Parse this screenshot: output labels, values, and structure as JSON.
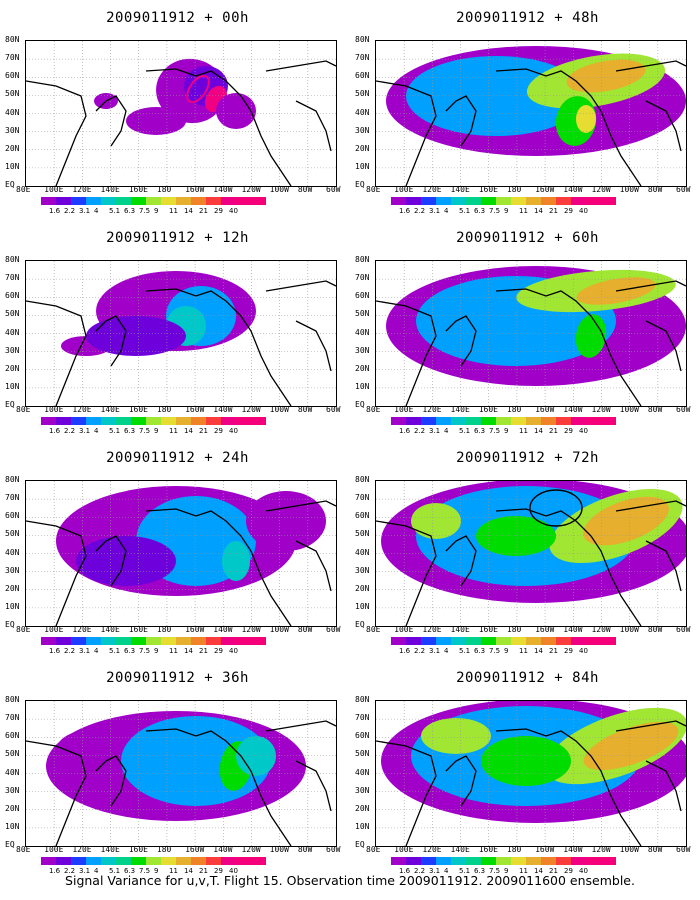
{
  "panels": [
    {
      "title": "2009011912 + 00h",
      "lead": "00h"
    },
    {
      "title": "2009011912 + 48h",
      "lead": "48h"
    },
    {
      "title": "2009011912 + 12h",
      "lead": "12h"
    },
    {
      "title": "2009011912 + 60h",
      "lead": "60h"
    },
    {
      "title": "2009011912 + 24h",
      "lead": "24h"
    },
    {
      "title": "2009011912 + 72h",
      "lead": "72h"
    },
    {
      "title": "2009011912 + 36h",
      "lead": "36h"
    },
    {
      "title": "2009011912 + 84h",
      "lead": "84h"
    }
  ],
  "lat_labels": [
    "80N",
    "70N",
    "60N",
    "50N",
    "40N",
    "30N",
    "20N",
    "10N",
    "EQ"
  ],
  "lon_labels": [
    "80E",
    "100E",
    "120E",
    "140E",
    "160E",
    "180",
    "160W",
    "140W",
    "120W",
    "100W",
    "80W",
    "60W"
  ],
  "colorbar": {
    "labels": [
      "1.6",
      "2.2",
      "3.1",
      "4",
      "5.1",
      "6.3",
      "7.5",
      "9",
      "11",
      "14",
      "21",
      "29",
      "40"
    ],
    "colors": [
      "#a000c8",
      "#6e00dc",
      "#1e3cff",
      "#00a0ff",
      "#00c8c8",
      "#00d28c",
      "#00dc00",
      "#a0e632",
      "#e6dc32",
      "#e6af2d",
      "#f08228",
      "#fa3c3c",
      "#f00082"
    ]
  },
  "caption": "Signal Variance for u,v,T. Flight 15. Observation time 2009011912. 2009011600 ensemble."
}
